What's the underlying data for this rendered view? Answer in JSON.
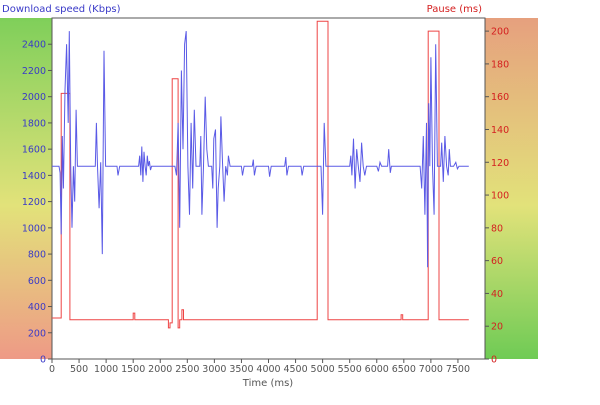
{
  "chart_data": {
    "type": "line",
    "title_left": "Download speed (Kbps)",
    "title_right": "Pause (ms)",
    "xlabel": "Time (ms)",
    "xlim": [
      0,
      8000
    ],
    "x_ticks": [
      0,
      500,
      1000,
      1500,
      2000,
      2500,
      3000,
      3500,
      4000,
      4500,
      5000,
      5500,
      6000,
      6500,
      7000,
      7500
    ],
    "y_left": {
      "lim": [
        0,
        2600
      ],
      "ticks": [
        0,
        200,
        400,
        600,
        800,
        1000,
        1200,
        1400,
        1600,
        1800,
        2000,
        2200,
        2400
      ]
    },
    "y_right": {
      "lim": [
        0,
        208
      ],
      "ticks": [
        0,
        20,
        40,
        60,
        80,
        100,
        120,
        140,
        160,
        180,
        200
      ]
    },
    "grid": false,
    "colors": {
      "speed": "#5a5ae6",
      "pause": "#ee4444",
      "left_axis_text": "#3a3ac8",
      "right_axis_text": "#d42020"
    },
    "series": [
      {
        "axis": "left",
        "points": [
          [
            0,
            1470
          ],
          [
            60,
            1470
          ],
          [
            100,
            1470
          ],
          [
            130,
            1470
          ],
          [
            150,
            1420
          ],
          [
            170,
            950
          ],
          [
            190,
            1700
          ],
          [
            210,
            1300
          ],
          [
            240,
            2050
          ],
          [
            270,
            2400
          ],
          [
            300,
            1800
          ],
          [
            320,
            2500
          ],
          [
            345,
            1470
          ],
          [
            370,
            1000
          ],
          [
            395,
            1470
          ],
          [
            420,
            1200
          ],
          [
            445,
            1900
          ],
          [
            470,
            1470
          ],
          [
            800,
            1470
          ],
          [
            820,
            1800
          ],
          [
            840,
            1470
          ],
          [
            870,
            1150
          ],
          [
            900,
            1500
          ],
          [
            930,
            800
          ],
          [
            960,
            2350
          ],
          [
            990,
            1470
          ],
          [
            1200,
            1470
          ],
          [
            1220,
            1400
          ],
          [
            1250,
            1470
          ],
          [
            1600,
            1470
          ],
          [
            1620,
            1550
          ],
          [
            1640,
            1400
          ],
          [
            1660,
            1620
          ],
          [
            1680,
            1350
          ],
          [
            1700,
            1580
          ],
          [
            1720,
            1470
          ],
          [
            1740,
            1400
          ],
          [
            1760,
            1550
          ],
          [
            1780,
            1470
          ],
          [
            1800,
            1510
          ],
          [
            1820,
            1440
          ],
          [
            1840,
            1470
          ],
          [
            2200,
            1470
          ],
          [
            2240,
            1470
          ],
          [
            2270,
            1470
          ],
          [
            2300,
            1400
          ],
          [
            2330,
            1800
          ],
          [
            2360,
            1000
          ],
          [
            2390,
            2200
          ],
          [
            2420,
            1600
          ],
          [
            2450,
            2400
          ],
          [
            2480,
            2500
          ],
          [
            2510,
            1470
          ],
          [
            2540,
            1100
          ],
          [
            2570,
            1800
          ],
          [
            2600,
            1300
          ],
          [
            2630,
            1900
          ],
          [
            2660,
            1470
          ],
          [
            2730,
            1470
          ],
          [
            2750,
            1700
          ],
          [
            2770,
            1100
          ],
          [
            2800,
            1470
          ],
          [
            2830,
            2000
          ],
          [
            2860,
            1600
          ],
          [
            2890,
            1470
          ],
          [
            2950,
            1470
          ],
          [
            2970,
            1300
          ],
          [
            2990,
            1680
          ],
          [
            3020,
            1750
          ],
          [
            3050,
            1000
          ],
          [
            3070,
            1300
          ],
          [
            3100,
            1470
          ],
          [
            3120,
            1850
          ],
          [
            3150,
            1500
          ],
          [
            3180,
            1200
          ],
          [
            3210,
            1470
          ],
          [
            3240,
            1400
          ],
          [
            3260,
            1550
          ],
          [
            3290,
            1470
          ],
          [
            3500,
            1470
          ],
          [
            3520,
            1400
          ],
          [
            3550,
            1470
          ],
          [
            3700,
            1470
          ],
          [
            3720,
            1520
          ],
          [
            3740,
            1400
          ],
          [
            3770,
            1470
          ],
          [
            4000,
            1470
          ],
          [
            4020,
            1390
          ],
          [
            4050,
            1470
          ],
          [
            4300,
            1470
          ],
          [
            4320,
            1540
          ],
          [
            4340,
            1400
          ],
          [
            4370,
            1470
          ],
          [
            4600,
            1470
          ],
          [
            4620,
            1400
          ],
          [
            4650,
            1470
          ],
          [
            4900,
            1470
          ],
          [
            4940,
            1470
          ],
          [
            4970,
            1470
          ],
          [
            5000,
            1100
          ],
          [
            5030,
            1800
          ],
          [
            5060,
            1470
          ],
          [
            5500,
            1470
          ],
          [
            5520,
            1550
          ],
          [
            5540,
            1400
          ],
          [
            5570,
            1680
          ],
          [
            5600,
            1300
          ],
          [
            5630,
            1600
          ],
          [
            5660,
            1470
          ],
          [
            5690,
            1350
          ],
          [
            5720,
            1650
          ],
          [
            5750,
            1470
          ],
          [
            5780,
            1400
          ],
          [
            5810,
            1470
          ],
          [
            6000,
            1470
          ],
          [
            6030,
            1430
          ],
          [
            6060,
            1500
          ],
          [
            6090,
            1470
          ],
          [
            6200,
            1470
          ],
          [
            6220,
            1600
          ],
          [
            6250,
            1420
          ],
          [
            6270,
            1470
          ],
          [
            6500,
            1470
          ],
          [
            6800,
            1470
          ],
          [
            6830,
            1300
          ],
          [
            6860,
            1700
          ],
          [
            6890,
            1100
          ],
          [
            6920,
            1800
          ],
          [
            6940,
            700
          ],
          [
            6960,
            1950
          ],
          [
            6980,
            1470
          ],
          [
            7000,
            2300
          ],
          [
            7030,
            1470
          ],
          [
            7060,
            1100
          ],
          [
            7090,
            2400
          ],
          [
            7120,
            1470
          ],
          [
            7180,
            1470
          ],
          [
            7200,
            1650
          ],
          [
            7230,
            1350
          ],
          [
            7260,
            1700
          ],
          [
            7290,
            1470
          ],
          [
            7320,
            1400
          ],
          [
            7340,
            1600
          ],
          [
            7360,
            1470
          ],
          [
            7420,
            1470
          ],
          [
            7460,
            1500
          ],
          [
            7490,
            1450
          ],
          [
            7520,
            1470
          ],
          [
            7560,
            1470
          ],
          [
            7600,
            1470
          ],
          [
            7650,
            1470
          ],
          [
            7700,
            1470
          ]
        ]
      },
      {
        "axis": "right",
        "points": [
          [
            0,
            25
          ],
          [
            170,
            25
          ],
          [
            170,
            162
          ],
          [
            330,
            162
          ],
          [
            330,
            24
          ],
          [
            1500,
            24
          ],
          [
            1500,
            28
          ],
          [
            1530,
            28
          ],
          [
            1530,
            24
          ],
          [
            2150,
            24
          ],
          [
            2150,
            19
          ],
          [
            2180,
            19
          ],
          [
            2180,
            22
          ],
          [
            2220,
            22
          ],
          [
            2220,
            171
          ],
          [
            2330,
            171
          ],
          [
            2330,
            19
          ],
          [
            2360,
            19
          ],
          [
            2360,
            24
          ],
          [
            2400,
            24
          ],
          [
            2400,
            30
          ],
          [
            2430,
            30
          ],
          [
            2430,
            24
          ],
          [
            4900,
            24
          ],
          [
            4900,
            206
          ],
          [
            5100,
            206
          ],
          [
            5100,
            24
          ],
          [
            6450,
            24
          ],
          [
            6450,
            27
          ],
          [
            6480,
            27
          ],
          [
            6480,
            24
          ],
          [
            6950,
            24
          ],
          [
            6950,
            200
          ],
          [
            7150,
            200
          ],
          [
            7150,
            24
          ],
          [
            7700,
            24
          ]
        ]
      }
    ]
  }
}
